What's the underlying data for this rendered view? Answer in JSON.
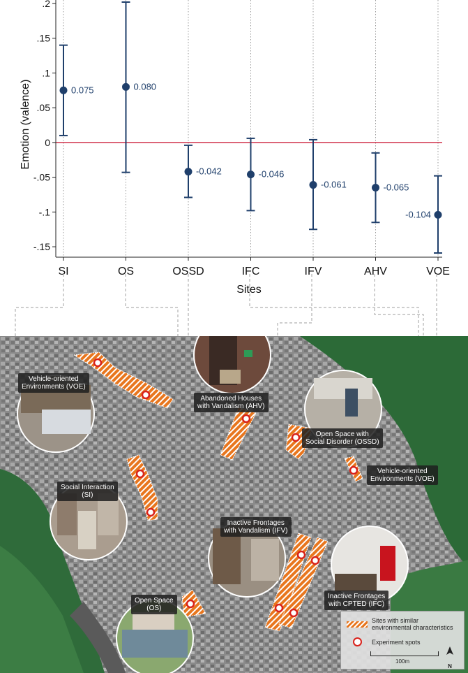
{
  "chart_data": {
    "type": "scatter",
    "subtype": "point estimates with confidence intervals",
    "title": "",
    "ylabel": "Emotion (valence)",
    "xlabel": "Sites",
    "ylim": [
      -0.165,
      0.205
    ],
    "yticks": [
      0.2,
      0.15,
      0.1,
      0.05,
      0,
      -0.05,
      -0.1,
      -0.15
    ],
    "ytick_labels": [
      ".2",
      ".15",
      ".1",
      ".05",
      "0",
      "-.05",
      "-.1",
      "-.15"
    ],
    "reference_line": 0,
    "grid": "vertical dotted lines at each site",
    "categories": [
      "SI",
      "OS",
      "OSSD",
      "IFC",
      "IFV",
      "AHV",
      "VOE"
    ],
    "values": [
      0.075,
      0.08,
      -0.042,
      -0.046,
      -0.061,
      -0.065,
      -0.104
    ],
    "value_labels": [
      "0.075",
      "0.080",
      "-0.042",
      "-0.046",
      "-0.061",
      "-0.065",
      "-0.104"
    ],
    "ci_low": [
      0.01,
      -0.043,
      -0.079,
      -0.098,
      -0.125,
      -0.115,
      -0.159
    ],
    "ci_high": [
      0.14,
      0.202,
      -0.004,
      0.006,
      0.004,
      -0.015,
      -0.048
    ]
  },
  "colors": {
    "point": "#1f3f6b",
    "zero_line": "#c8102e",
    "site_fill": "#e8761e",
    "spot_ring": "#d9221b"
  },
  "map": {
    "labels": {
      "voe_left": "Vehicle-oriented\nEnvironments (VOE)",
      "ahv": "Abandoned Houses\nwith Vandalism (AHV)",
      "ossd": "Open Space with\nSocial Disorder (OSSD)",
      "voe_right": "Vehicle-oriented\nEnvironments (VOE)",
      "si": "Social Interaction\n(SI)",
      "ifv": "Inactive Frontages\nwith Vandalism (IFV)",
      "ifc": "Inactive Frontages\nwith CPTED (IFC)",
      "os": "Open Space\n(OS)"
    },
    "legend": {
      "sites_label": "Sites with similar\nenvironmental characteristics",
      "spots_label": "Experiment spots"
    },
    "scale_label": "100m",
    "north_label": "N"
  }
}
